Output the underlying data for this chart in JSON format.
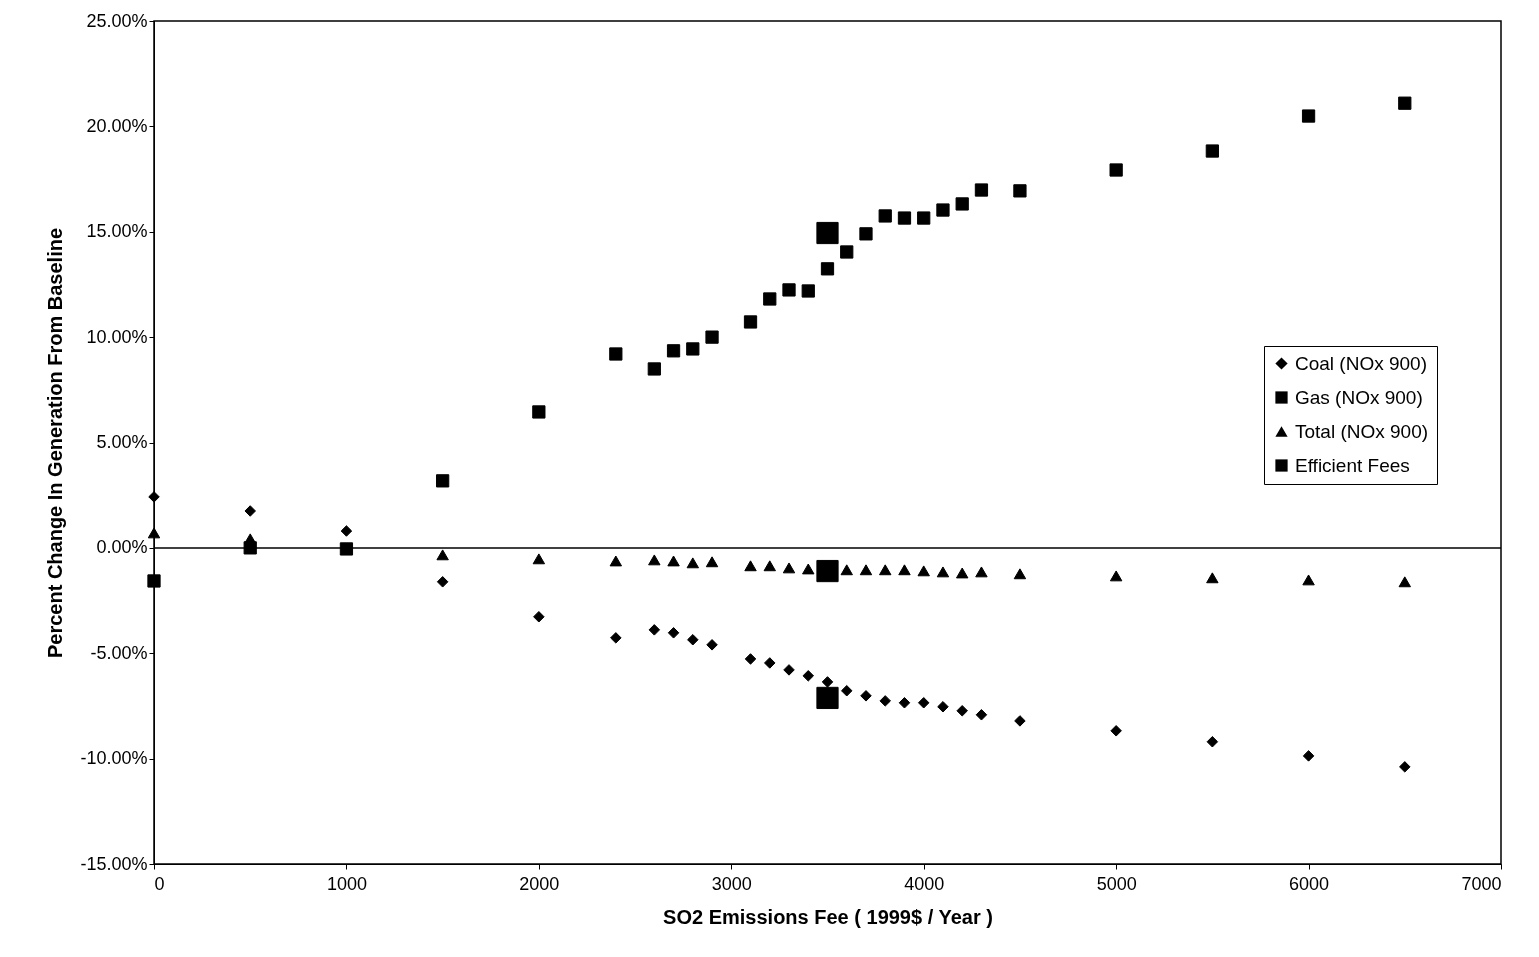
{
  "chart_data": {
    "type": "scatter",
    "xlabel": "SO2 Emissions Fee ( 1999$ / Year )",
    "ylabel": "Percent Change In Generation From Baseline",
    "series": [
      {
        "name": "Coal (NOx 900)",
        "color": "#000000",
        "marker": "diamond",
        "x": [
          0,
          500,
          1000,
          1500,
          2000,
          2400,
          2600,
          2700,
          2800,
          2900,
          3100,
          3200,
          3300,
          3400,
          3500,
          3600,
          3700,
          3800,
          3900,
          4000,
          4100,
          4200,
          4300,
          4500,
          5000,
          5500,
          6000,
          6500
        ],
        "values": [
          2.42,
          1.75,
          0.8,
          -1.61,
          -3.27,
          -4.27,
          -3.89,
          -4.03,
          -4.36,
          -4.6,
          -5.27,
          -5.46,
          -5.79,
          -6.07,
          -6.36,
          -6.78,
          -7.02,
          -7.26,
          -7.35,
          -7.35,
          -7.54,
          -7.73,
          -7.92,
          -8.21,
          -8.68,
          -9.2,
          -9.87,
          -10.39
        ]
      },
      {
        "name": "Gas (NOx 900)",
        "color": "#000000",
        "marker": "square",
        "x": [
          0,
          500,
          1000,
          1500,
          2000,
          2400,
          2600,
          2700,
          2800,
          2900,
          3100,
          3200,
          3300,
          3400,
          3500,
          3600,
          3700,
          3800,
          3900,
          4000,
          4100,
          4200,
          4300,
          4500,
          5000,
          5500,
          6000,
          6500
        ],
        "values": [
          -1.57,
          0.0,
          -0.05,
          3.18,
          6.45,
          9.2,
          8.49,
          9.35,
          9.44,
          10.0,
          10.72,
          11.81,
          12.24,
          12.19,
          13.24,
          14.04,
          14.9,
          15.75,
          15.65,
          15.65,
          16.03,
          16.32,
          16.98,
          16.94,
          17.93,
          18.83,
          20.49,
          21.1
        ]
      },
      {
        "name": "Total (NOx 900)",
        "color": "#000000",
        "marker": "triangle",
        "x": [
          0,
          500,
          1500,
          2000,
          2400,
          2600,
          2700,
          2800,
          2900,
          3100,
          3200,
          3300,
          3400,
          3600,
          3700,
          3800,
          3900,
          4000,
          4100,
          4200,
          4300,
          4500,
          5000,
          5500,
          6000,
          6500
        ],
        "values": [
          0.71,
          0.43,
          -0.33,
          -0.52,
          -0.62,
          -0.57,
          -0.62,
          -0.71,
          -0.66,
          -0.85,
          -0.85,
          -0.95,
          -1.0,
          -1.04,
          -1.04,
          -1.04,
          -1.04,
          -1.09,
          -1.14,
          -1.19,
          -1.14,
          -1.23,
          -1.33,
          -1.42,
          -1.52,
          -1.61
        ]
      },
      {
        "name": "Efficient Fees",
        "color": "#000000",
        "marker": "square",
        "x": [
          3500,
          3500,
          3500
        ],
        "values": [
          14.94,
          -1.1,
          -7.12
        ]
      }
    ],
    "xlim": [
      0,
      7000
    ],
    "xticks": [
      0,
      1000,
      2000,
      3000,
      4000,
      5000,
      6000,
      7000
    ],
    "ylim": [
      -15,
      25
    ],
    "yticks": [
      {
        "value": -15,
        "label": "-15.00%"
      },
      {
        "value": -10,
        "label": "-10.00%"
      },
      {
        "value": -5,
        "label": "-5.00%"
      },
      {
        "value": 0,
        "label": "0.00%"
      },
      {
        "value": 5,
        "label": "5.00%"
      },
      {
        "value": 10,
        "label": "10.00%"
      },
      {
        "value": 15,
        "label": "15.00%"
      },
      {
        "value": 20,
        "label": "20.00%"
      },
      {
        "value": 25,
        "label": "25.00%"
      }
    ],
    "ref_lines": [
      {
        "axis": "y",
        "value": 0
      }
    ],
    "grid": false,
    "legend": "right"
  }
}
